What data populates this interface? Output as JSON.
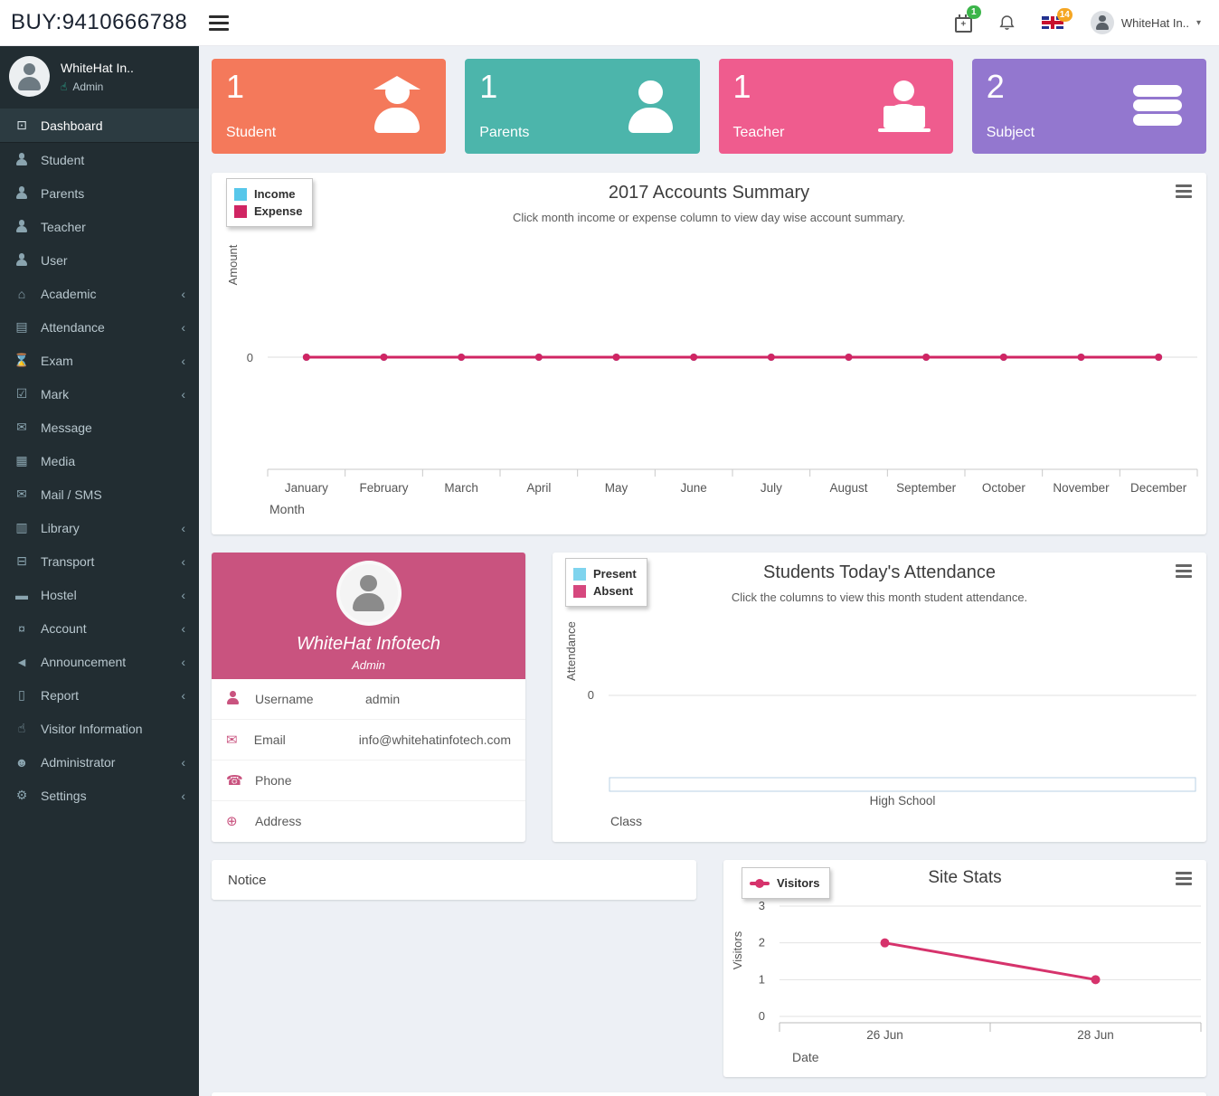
{
  "topbar": {
    "brand": "BUY:9410666788",
    "calendar_badge": "1",
    "flag_badge": "14",
    "user_name": "WhiteHat In.."
  },
  "sidebar": {
    "profile": {
      "name": "WhiteHat In..",
      "role": "Admin"
    },
    "items": [
      {
        "label": "Dashboard",
        "icon": "dashboard-icon",
        "active": true,
        "submenu": false
      },
      {
        "label": "Student",
        "icon": "student-icon",
        "active": false,
        "submenu": false
      },
      {
        "label": "Parents",
        "icon": "parents-icon",
        "active": false,
        "submenu": false
      },
      {
        "label": "Teacher",
        "icon": "teacher-icon",
        "active": false,
        "submenu": false
      },
      {
        "label": "User",
        "icon": "user-icon",
        "active": false,
        "submenu": false
      },
      {
        "label": "Academic",
        "icon": "academic-icon",
        "active": false,
        "submenu": true
      },
      {
        "label": "Attendance",
        "icon": "attendance-icon",
        "active": false,
        "submenu": true
      },
      {
        "label": "Exam",
        "icon": "exam-icon",
        "active": false,
        "submenu": true
      },
      {
        "label": "Mark",
        "icon": "mark-icon",
        "active": false,
        "submenu": true
      },
      {
        "label": "Message",
        "icon": "message-icon",
        "active": false,
        "submenu": false
      },
      {
        "label": "Media",
        "icon": "media-icon",
        "active": false,
        "submenu": false
      },
      {
        "label": "Mail / SMS",
        "icon": "mail-sms-icon",
        "active": false,
        "submenu": false
      },
      {
        "label": "Library",
        "icon": "library-icon",
        "active": false,
        "submenu": true
      },
      {
        "label": "Transport",
        "icon": "transport-icon",
        "active": false,
        "submenu": true
      },
      {
        "label": "Hostel",
        "icon": "hostel-icon",
        "active": false,
        "submenu": true
      },
      {
        "label": "Account",
        "icon": "account-icon",
        "active": false,
        "submenu": true
      },
      {
        "label": "Announcement",
        "icon": "announcement-icon",
        "active": false,
        "submenu": true
      },
      {
        "label": "Report",
        "icon": "report-icon",
        "active": false,
        "submenu": true
      },
      {
        "label": "Visitor Information",
        "icon": "visitor-info-icon",
        "active": false,
        "submenu": false
      },
      {
        "label": "Administrator",
        "icon": "administrator-icon",
        "active": false,
        "submenu": true
      },
      {
        "label": "Settings",
        "icon": "settings-icon",
        "active": false,
        "submenu": true
      }
    ]
  },
  "stat_cards": [
    {
      "value": "1",
      "label": "Student",
      "icon": "graduate-icon",
      "color": "#f4795b"
    },
    {
      "value": "1",
      "label": "Parents",
      "icon": "person-icon",
      "color": "#4cb5ab"
    },
    {
      "value": "1",
      "label": "Teacher",
      "icon": "teacher-laptop-icon",
      "color": "#ef5c8e"
    },
    {
      "value": "2",
      "label": "Subject",
      "icon": "books-icon",
      "color": "#9377cf"
    }
  ],
  "chart_data": [
    {
      "id": "accounts-summary",
      "type": "line",
      "title": "2017 Accounts Summary",
      "subtitle": "Click month income or expense column to view day wise account summary.",
      "xlabel": "Month",
      "ylabel": "Amount",
      "categories": [
        "January",
        "February",
        "March",
        "April",
        "May",
        "June",
        "July",
        "August",
        "September",
        "October",
        "November",
        "December"
      ],
      "series": [
        {
          "name": "Income",
          "color": "#57c7ea",
          "values": [
            0,
            0,
            0,
            0,
            0,
            0,
            0,
            0,
            0,
            0,
            0,
            0
          ]
        },
        {
          "name": "Expense",
          "color": "#d02563",
          "values": [
            0,
            0,
            0,
            0,
            0,
            0,
            0,
            0,
            0,
            0,
            0,
            0
          ]
        }
      ],
      "ytick_labels": [
        "0"
      ],
      "grid": true,
      "legend_position": "top-left"
    },
    {
      "id": "attendance",
      "type": "bar",
      "title": "Students Today's Attendance",
      "subtitle": "Click the columns to view this month student attendance.",
      "xlabel": "Class",
      "ylabel": "Attendance",
      "categories": [
        "High School"
      ],
      "series": [
        {
          "name": "Present",
          "color": "#7fd4ee",
          "values": [
            0
          ]
        },
        {
          "name": "Absent",
          "color": "#d6487e",
          "values": [
            0
          ]
        }
      ],
      "ytick_labels": [
        "0"
      ],
      "grid": true,
      "legend_position": "top-left"
    },
    {
      "id": "site-stats",
      "type": "line",
      "title": "Site Stats",
      "xlabel": "Date",
      "ylabel": "Visitors",
      "categories": [
        "26 Jun",
        "28 Jun"
      ],
      "series": [
        {
          "name": "Visitors",
          "color": "#d6336c",
          "values": [
            2,
            1
          ]
        }
      ],
      "yticks": [
        3,
        2,
        1,
        0
      ],
      "ylim": [
        0,
        3
      ],
      "grid": true,
      "legend_position": "top-left"
    }
  ],
  "profile_card": {
    "name": "WhiteHat Infotech",
    "role": "Admin",
    "header_color": "#c9537f",
    "rows": [
      {
        "icon": "user-icon",
        "label": "Username",
        "value": "admin"
      },
      {
        "icon": "envelope-icon",
        "label": "Email",
        "value": "info@whitehatinfotech.com"
      },
      {
        "icon": "phone-icon",
        "label": "Phone",
        "value": ""
      },
      {
        "icon": "globe-icon",
        "label": "Address",
        "value": ""
      }
    ]
  },
  "notice": {
    "title": "Notice"
  }
}
